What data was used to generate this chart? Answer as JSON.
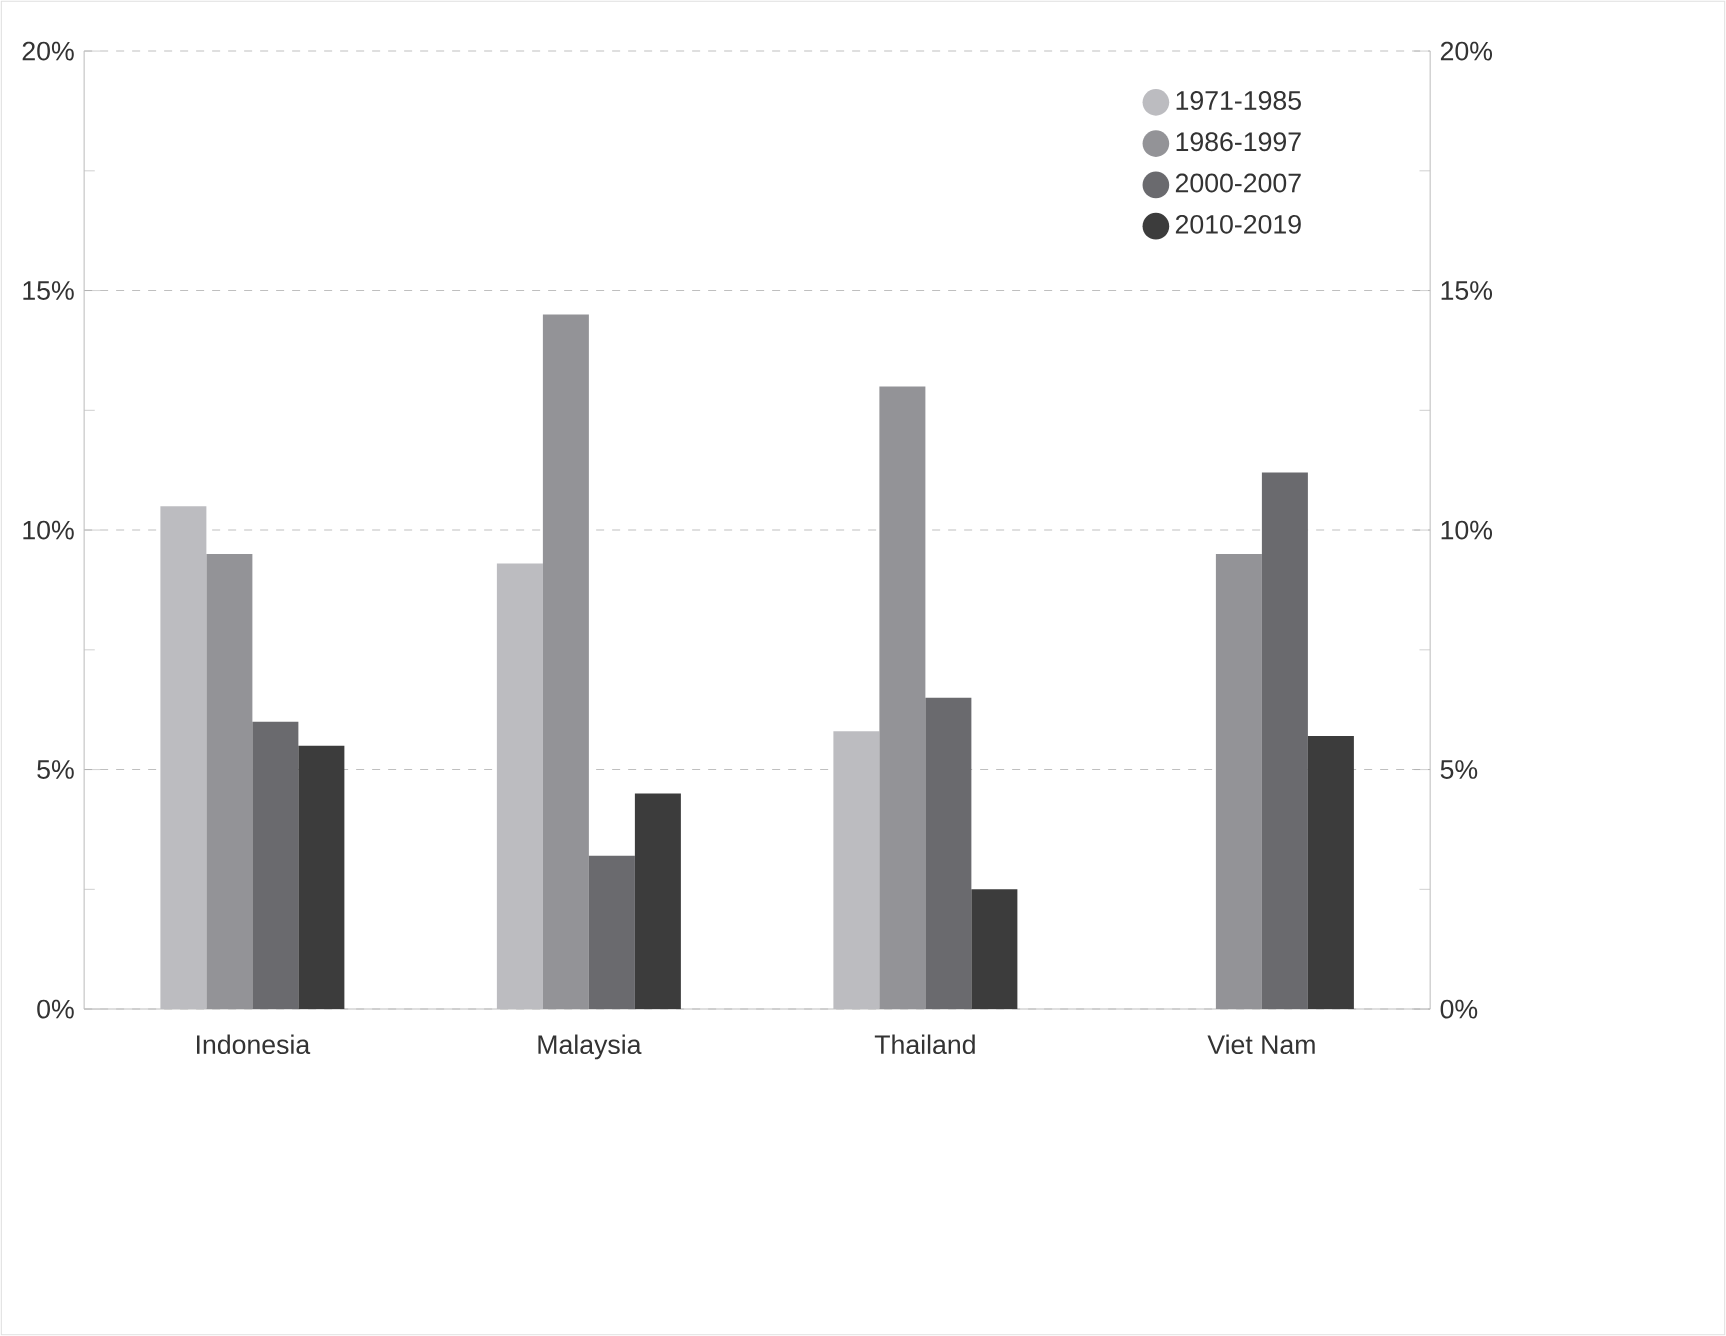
{
  "chart_data": {
    "type": "bar",
    "categories": [
      "Indonesia",
      "Malaysia",
      "Thailand",
      "Viet Nam"
    ],
    "series": [
      {
        "name": "1971-1985",
        "color": "#bcbcc0",
        "values": [
          10.5,
          9.3,
          5.8,
          null
        ]
      },
      {
        "name": "1986-1997",
        "color": "#939397",
        "values": [
          9.5,
          14.5,
          13.0,
          9.5
        ]
      },
      {
        "name": "2000-2007",
        "color": "#6a6a6e",
        "values": [
          6.0,
          3.2,
          6.5,
          11.2
        ]
      },
      {
        "name": "2010-2019",
        "color": "#3c3c3c",
        "values": [
          5.5,
          4.5,
          2.5,
          5.7
        ]
      }
    ],
    "ylim": [
      0,
      20
    ],
    "yticks": [
      {
        "value": 0,
        "label": "0%"
      },
      {
        "value": 2.5,
        "label": null
      },
      {
        "value": 5,
        "label": "5%"
      },
      {
        "value": 7.5,
        "label": null
      },
      {
        "value": 10,
        "label": "10%"
      },
      {
        "value": 12.5,
        "label": null
      },
      {
        "value": 15,
        "label": "15%"
      },
      {
        "value": 17.5,
        "label": null
      },
      {
        "value": 20,
        "label": "20%"
      }
    ],
    "y2lim": [
      0,
      20
    ],
    "y2ticks": [
      {
        "value": 0,
        "label": "0%"
      },
      {
        "value": 2.5,
        "label": null
      },
      {
        "value": 5,
        "label": "5%"
      },
      {
        "value": 7.5,
        "label": null
      },
      {
        "value": 10,
        "label": "10%"
      },
      {
        "value": 12.5,
        "label": null
      },
      {
        "value": 15,
        "label": "15%"
      },
      {
        "value": 17.5,
        "label": null
      },
      {
        "value": 20,
        "label": "20%"
      }
    ],
    "grid": "y",
    "legend": "top right",
    "marker": "circle"
  }
}
